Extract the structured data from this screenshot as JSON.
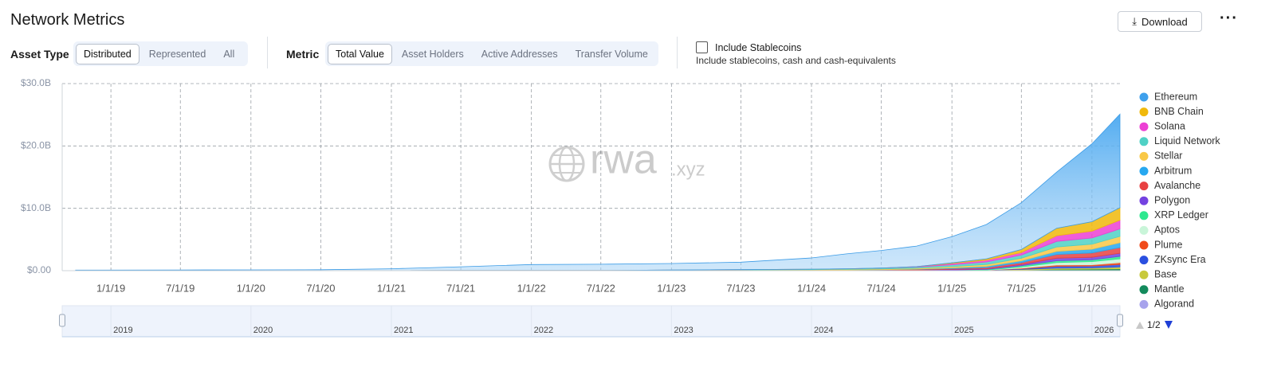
{
  "header": {
    "title": "Network Metrics",
    "download": "Download"
  },
  "filters": {
    "asset_type": {
      "label": "Asset Type",
      "options": [
        "Distributed",
        "Represented",
        "All"
      ],
      "selected": 0
    },
    "metric": {
      "label": "Metric",
      "options": [
        "Total Value",
        "Asset Holders",
        "Active Addresses",
        "Transfer Volume"
      ],
      "selected": 0
    },
    "stablecoins": {
      "label": "Include Stablecoins",
      "hint": "Include stablecoins, cash and cash-equivalents",
      "checked": false
    }
  },
  "chart_data": {
    "type": "stacked_area",
    "watermark": {
      "main": "rwa",
      "suffix": ".xyz"
    },
    "x": [
      "10/1/18",
      "7/1/19",
      "1/1/20",
      "7/1/20",
      "1/1/21",
      "7/1/21",
      "1/1/22",
      "7/1/22",
      "1/1/23",
      "7/1/23",
      "1/1/24",
      "4/1/24",
      "7/1/24",
      "10/1/24",
      "1/1/25",
      "4/1/25",
      "7/1/25",
      "10/1/25",
      "1/1/26",
      "3/15/26"
    ],
    "xlim": [
      "8/27/18",
      "3/15/26"
    ],
    "xticks": [
      "1/1/19",
      "7/1/19",
      "1/1/20",
      "7/1/20",
      "1/1/21",
      "7/1/21",
      "1/1/22",
      "7/1/22",
      "1/1/23",
      "7/1/23",
      "1/1/24",
      "7/1/24",
      "1/1/25",
      "7/1/25",
      "1/1/26"
    ],
    "ylim": [
      0,
      30
    ],
    "yticks": [
      {
        "value": 0,
        "label": "$0.00"
      },
      {
        "value": 10,
        "label": "$10.0B"
      },
      {
        "value": 20,
        "label": "$20.0B"
      },
      {
        "value": 30,
        "label": "$30.0B"
      }
    ],
    "grid": true,
    "legend": "right",
    "legend_page": "1/2",
    "navigator_labels": [
      "2019",
      "2020",
      "2021",
      "2022",
      "2023",
      "2024",
      "2025",
      "2026"
    ],
    "series": [
      {
        "name": "Ethereum",
        "color": "#3ea0ec",
        "values": [
          0.08,
          0.1,
          0.12,
          0.14,
          0.3,
          0.6,
          0.95,
          1.0,
          1.05,
          1.2,
          1.8,
          2.4,
          2.8,
          3.3,
          4.2,
          5.5,
          7.5,
          9.0,
          12.5,
          15.0
        ]
      },
      {
        "name": "BNB Chain",
        "color": "#f0b90b",
        "values": [
          0,
          0,
          0,
          0,
          0,
          0,
          0,
          0,
          0,
          0,
          0,
          0,
          0,
          0,
          0.1,
          0.2,
          0.5,
          1.2,
          1.5,
          2.0
        ]
      },
      {
        "name": "Solana",
        "color": "#ec40d4",
        "values": [
          0,
          0,
          0,
          0,
          0,
          0,
          0,
          0,
          0,
          0,
          0,
          0,
          0.02,
          0.05,
          0.2,
          0.3,
          0.4,
          0.9,
          1.1,
          1.4
        ]
      },
      {
        "name": "Liquid Network",
        "color": "#4fd1c5",
        "values": [
          0,
          0,
          0,
          0,
          0,
          0,
          0,
          0,
          0.02,
          0.05,
          0.08,
          0.1,
          0.15,
          0.2,
          0.3,
          0.4,
          0.5,
          0.9,
          1.0,
          1.2
        ]
      },
      {
        "name": "Stellar",
        "color": "#f9c846",
        "values": [
          0,
          0,
          0,
          0,
          0,
          0,
          0,
          0,
          0.03,
          0.05,
          0.07,
          0.08,
          0.1,
          0.15,
          0.2,
          0.3,
          0.4,
          0.7,
          0.8,
          1.0
        ]
      },
      {
        "name": "Arbitrum",
        "color": "#27a8f0",
        "values": [
          0,
          0,
          0,
          0,
          0,
          0,
          0,
          0,
          0,
          0,
          0,
          0,
          0.02,
          0.05,
          0.1,
          0.2,
          0.3,
          0.5,
          0.6,
          0.8
        ]
      },
      {
        "name": "Avalanche",
        "color": "#e84142",
        "values": [
          0,
          0,
          0,
          0,
          0,
          0,
          0,
          0,
          0,
          0,
          0.02,
          0.04,
          0.06,
          0.1,
          0.15,
          0.2,
          0.3,
          0.6,
          0.7,
          0.9
        ]
      },
      {
        "name": "Polygon",
        "color": "#7442e0",
        "values": [
          0,
          0,
          0,
          0,
          0,
          0,
          0,
          0,
          0.02,
          0.03,
          0.04,
          0.05,
          0.05,
          0.05,
          0.1,
          0.1,
          0.2,
          0.4,
          0.4,
          0.5
        ]
      },
      {
        "name": "XRP Ledger",
        "color": "#2ee88f",
        "values": [
          0,
          0,
          0,
          0,
          0,
          0,
          0,
          0,
          0,
          0,
          0,
          0,
          0.01,
          0.02,
          0.05,
          0.1,
          0.2,
          0.3,
          0.3,
          0.4
        ]
      },
      {
        "name": "Aptos",
        "color": "#c9f5d9",
        "values": [
          0,
          0,
          0,
          0,
          0,
          0,
          0,
          0,
          0,
          0,
          0,
          0,
          0,
          0,
          0,
          0,
          0.2,
          0.4,
          0.5,
          0.6
        ]
      },
      {
        "name": "Plume",
        "color": "#f04a1a",
        "values": [
          0,
          0,
          0,
          0,
          0,
          0,
          0,
          0,
          0,
          0,
          0,
          0,
          0,
          0,
          0,
          0,
          0.1,
          0.2,
          0.2,
          0.3
        ]
      },
      {
        "name": "ZKsync Era",
        "color": "#2a4fe0",
        "values": [
          0,
          0,
          0,
          0,
          0,
          0,
          0,
          0,
          0,
          0,
          0,
          0,
          0,
          0,
          0,
          0,
          0.1,
          0.3,
          0.3,
          0.4
        ]
      },
      {
        "name": "Base",
        "color": "#c8c93c",
        "values": [
          0,
          0,
          0,
          0,
          0,
          0,
          0,
          0,
          0,
          0,
          0,
          0,
          0,
          0,
          0.02,
          0.05,
          0.1,
          0.2,
          0.2,
          0.3
        ]
      },
      {
        "name": "Mantle",
        "color": "#138a5c",
        "values": [
          0,
          0,
          0,
          0,
          0,
          0,
          0,
          0,
          0,
          0,
          0,
          0,
          0,
          0,
          0,
          0.02,
          0.05,
          0.1,
          0.15,
          0.2
        ]
      },
      {
        "name": "Algorand",
        "color": "#a7a3ec",
        "values": [
          0.01,
          0.01,
          0.01,
          0.01,
          0.01,
          0.02,
          0.03,
          0.03,
          0.03,
          0.03,
          0.03,
          0.03,
          0.03,
          0.03,
          0.03,
          0.03,
          0.05,
          0.1,
          0.1,
          0.1
        ]
      }
    ]
  }
}
